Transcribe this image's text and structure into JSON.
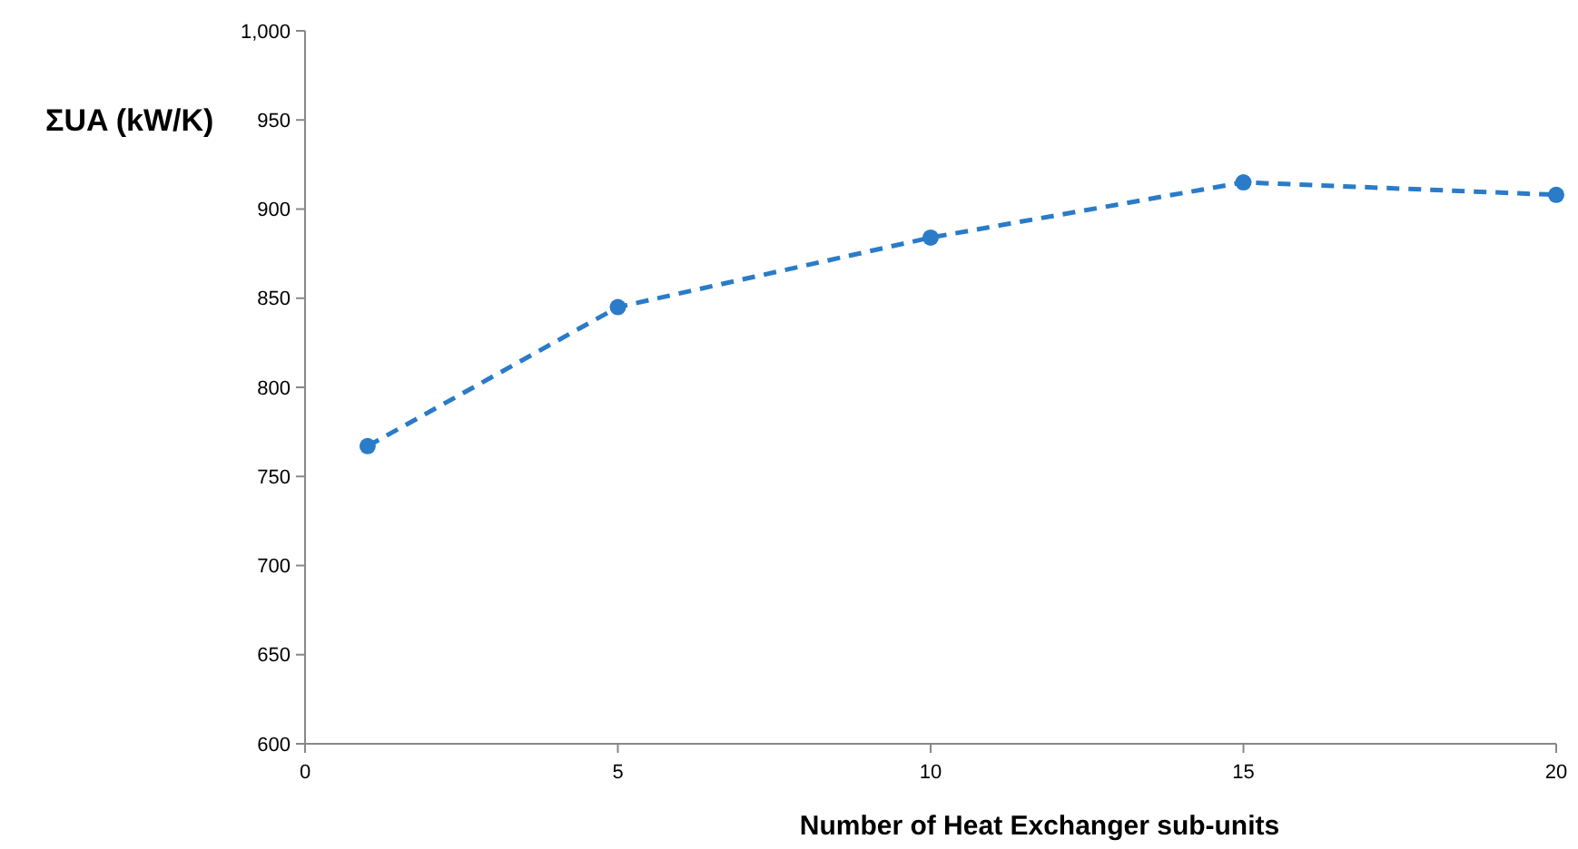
{
  "chart_data": {
    "type": "line",
    "xlabel": "Number of Heat Exchanger sub-units",
    "ylabel": "ΣUA (kW/K)",
    "x": [
      1,
      5,
      10,
      15,
      20
    ],
    "series": [
      {
        "color": "#2a7bc8",
        "values": [
          767,
          845,
          884,
          915,
          908
        ]
      }
    ],
    "xlim": [
      0,
      20
    ],
    "xticks": [
      0,
      5,
      10,
      15,
      20
    ],
    "ylim": [
      600,
      1000
    ],
    "yticks": [
      600,
      650,
      700,
      750,
      800,
      850,
      900,
      950,
      {
        "value": 1000,
        "label": "1,000"
      }
    ],
    "grid": false,
    "marker": "circle",
    "line_style": "dashed"
  }
}
